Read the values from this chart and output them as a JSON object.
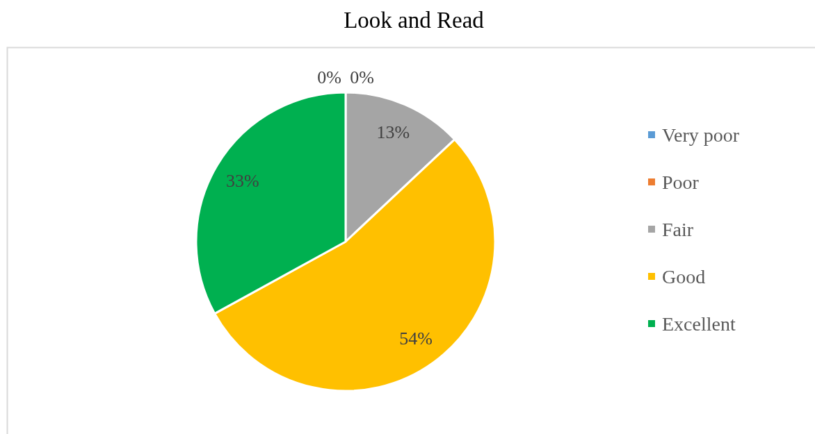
{
  "chart_data": {
    "type": "pie",
    "title": "Look and Read",
    "categories": [
      "Very poor",
      "Poor",
      "Fair",
      "Good",
      "Excellent"
    ],
    "values": [
      0,
      0,
      13,
      54,
      33
    ],
    "colors": [
      "#5b9bd5",
      "#ed7d31",
      "#a5a5a5",
      "#ffc000",
      "#00b050"
    ],
    "value_labels": [
      "0%",
      "0%",
      "13%",
      "54%",
      "33%"
    ],
    "legend": "right"
  }
}
